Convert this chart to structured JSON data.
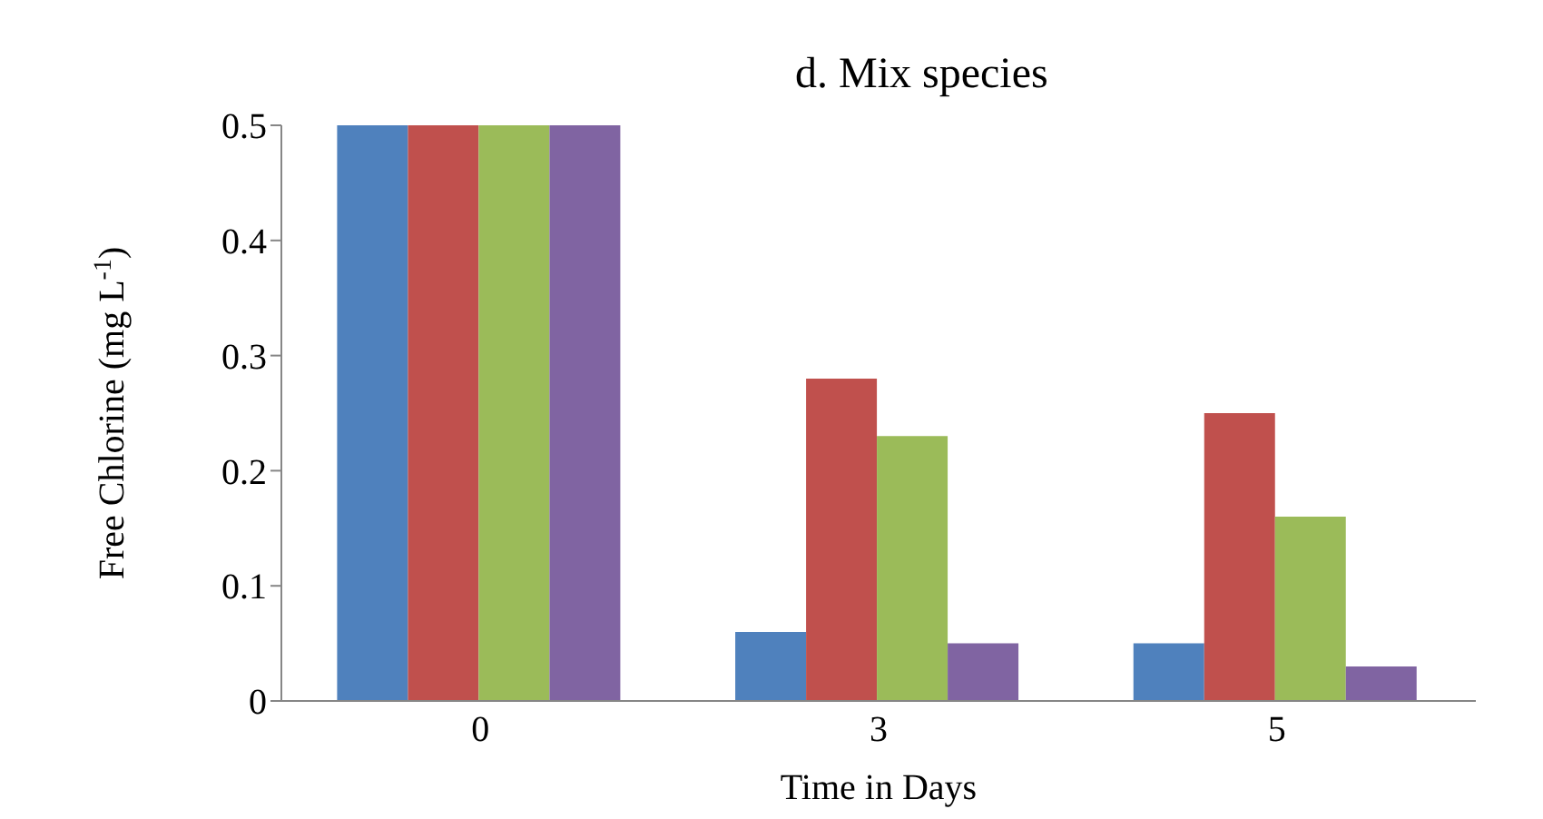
{
  "chart_data": {
    "type": "bar",
    "title": "d. Mix species",
    "xlabel": "Time in Days",
    "ylabel": "Free Chlorine (mg L$^{-1}$)",
    "categories": [
      "0",
      "3",
      "5"
    ],
    "series": [
      {
        "color": "#4f81bd",
        "values": [
          0.5,
          0.06,
          0.05
        ]
      },
      {
        "color": "#c0504d",
        "values": [
          0.5,
          0.28,
          0.25
        ]
      },
      {
        "color": "#9bbb59",
        "values": [
          0.5,
          0.23,
          0.16
        ]
      },
      {
        "color": "#8064a2",
        "values": [
          0.5,
          0.05,
          0.03
        ]
      }
    ],
    "ylim": [
      0,
      0.5
    ],
    "yticks": [
      0,
      0.1,
      0.2,
      0.3,
      0.4,
      0.5
    ],
    "grid": false,
    "legend": false
  }
}
